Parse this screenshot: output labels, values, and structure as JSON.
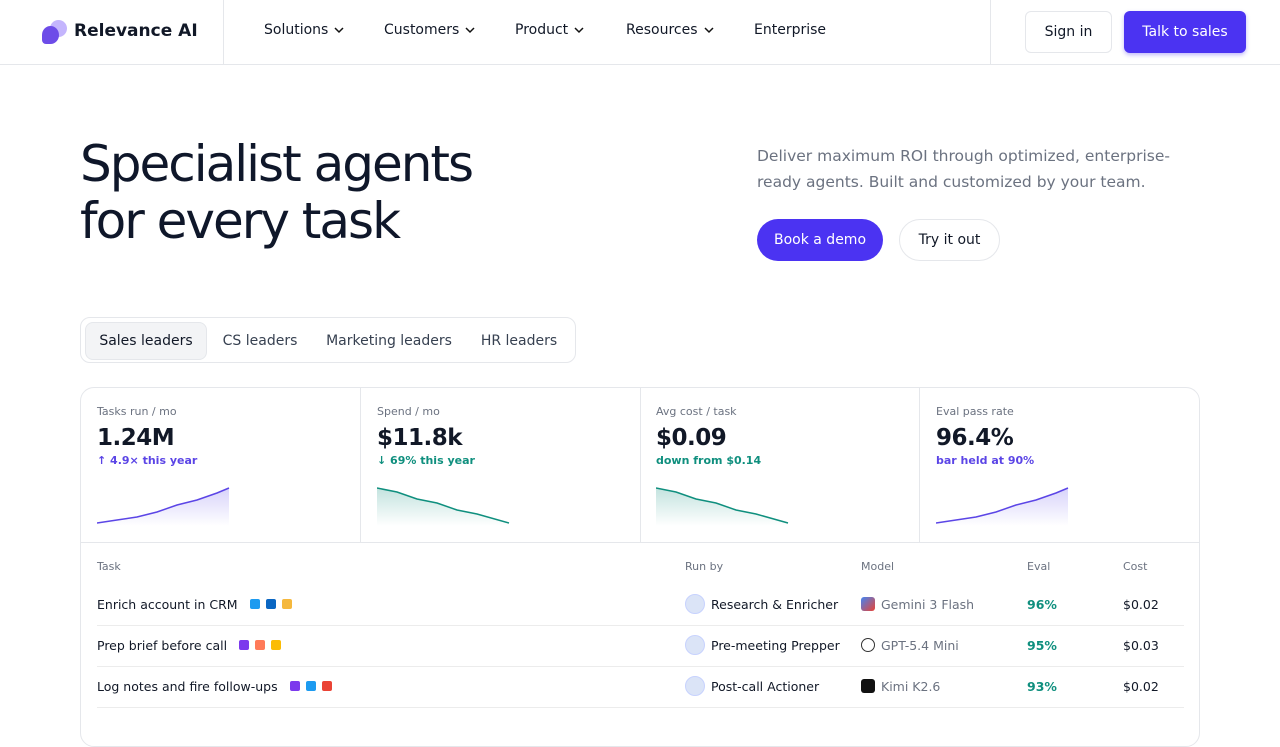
{
  "nav": {
    "logo": "Relevance AI",
    "items": [
      "Solutions",
      "Customers",
      "Product",
      "Resources",
      "Enterprise"
    ],
    "sign_in": "Sign in",
    "cta": "Talk to sales"
  },
  "hero": {
    "title": [
      "Specialist agents",
      "for every task"
    ],
    "description": "Deliver maximum ROI through optimized, enterprise-ready agents. Built and customized by your team.",
    "primary_button": "Book a demo",
    "secondary_button": "Try it out"
  },
  "tabs": {
    "items": [
      "Sales leaders",
      "CS leaders",
      "Marketing leaders",
      "HR leaders"
    ]
  },
  "metrics": [
    {
      "label": "Tasks run / mo",
      "value": "1.24M",
      "note": "↑ 4.9× this year"
    },
    {
      "label": "Spend / mo",
      "value": "$11.8k",
      "note": "↓ 69% this year"
    },
    {
      "label": "Avg cost / task",
      "value": "$0.09",
      "note": "down from $0.14"
    },
    {
      "label": "Eval pass rate",
      "value": "96.4%",
      "note": "bar held at 90%"
    }
  ],
  "table": {
    "headers": [
      "Task",
      "Run by",
      "Model",
      "Eval",
      "Cost"
    ],
    "rows": [
      [
        "Enrich account in CRM",
        "Research & Enricher",
        "Gemini 3 Flash",
        "96%",
        "$0.02"
      ],
      [
        "Prep brief before call",
        "Pre-meeting Prepper",
        "GPT-5.4 Mini",
        "95%",
        "$0.03"
      ],
      [
        "Log notes and fire follow-ups",
        "Post-call Actioner",
        "Kimi K2.6",
        "93%",
        "$0.02"
      ]
    ]
  }
}
